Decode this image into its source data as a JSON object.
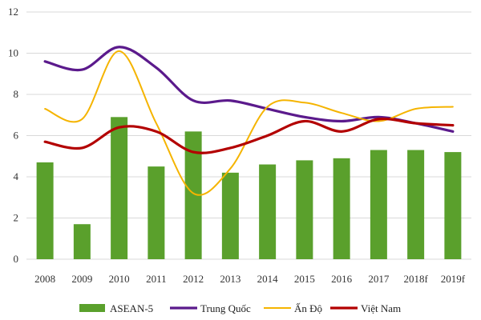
{
  "chart_data": {
    "type": "bar",
    "categories": [
      "2008",
      "2009",
      "2010",
      "2011",
      "2012",
      "2013",
      "2014",
      "2015",
      "2016",
      "2017",
      "2018f",
      "2019f"
    ],
    "ylim": [
      0,
      12
    ],
    "yticks": [
      0,
      2,
      4,
      6,
      8,
      10,
      12
    ],
    "grid": true,
    "legend_position": "bottom",
    "series": [
      {
        "name": "ASEAN-5",
        "type": "bar",
        "color": "#5aa02c",
        "values": [
          4.7,
          1.7,
          6.9,
          4.5,
          6.2,
          4.2,
          4.6,
          4.8,
          4.9,
          5.3,
          5.3,
          5.2
        ]
      },
      {
        "name": "Trung Quốc",
        "type": "line",
        "color": "#5b1a8c",
        "values": [
          9.6,
          9.2,
          10.3,
          9.3,
          7.7,
          7.7,
          7.3,
          6.9,
          6.7,
          6.9,
          6.6,
          6.2
        ]
      },
      {
        "name": "Ấn Độ",
        "type": "line",
        "color": "#f5b400",
        "values": [
          7.3,
          6.8,
          10.1,
          6.6,
          3.2,
          4.4,
          7.4,
          7.6,
          7.1,
          6.7,
          7.3,
          7.4
        ]
      },
      {
        "name": "Việt Nam",
        "type": "line",
        "color": "#b30000",
        "values": [
          5.7,
          5.4,
          6.4,
          6.2,
          5.2,
          5.4,
          6.0,
          6.7,
          6.2,
          6.8,
          6.6,
          6.5
        ]
      }
    ]
  }
}
